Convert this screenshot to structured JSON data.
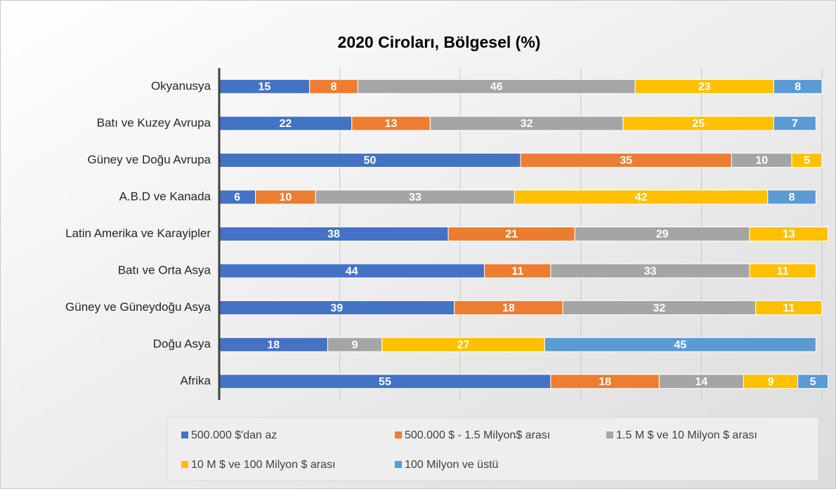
{
  "chart_data": {
    "type": "stacked-bar-horizontal",
    "title": "2020 Ciroları, Bölgesel (%)",
    "categories": [
      "Okyanusya",
      "Batı ve Kuzey Avrupa",
      "Güney ve Doğu Avrupa",
      "A.B.D ve Kanada",
      "Latin Amerika ve Karayipler",
      "Batı ve Orta Asya",
      "Güney ve Güneydoğu Asya",
      "Doğu Asya",
      "Afrika"
    ],
    "series": [
      {
        "name": "500.000 $'dan az",
        "color": "#4472c4",
        "values": [
          15,
          22,
          50,
          6,
          38,
          44,
          39,
          18,
          55
        ]
      },
      {
        "name": "500.000 $ - 1.5 Milyon$ arası",
        "color": "#ed7d31",
        "values": [
          8,
          13,
          35,
          10,
          21,
          11,
          18,
          null,
          18
        ]
      },
      {
        "name": "1.5 M $ ve 10 Milyon $ arası",
        "color": "#a5a5a5",
        "values": [
          46,
          32,
          10,
          33,
          29,
          33,
          32,
          9,
          14
        ]
      },
      {
        "name": "10 M $ ve 100 Milyon $ arası",
        "color": "#ffc000",
        "values": [
          23,
          25,
          5,
          42,
          13,
          11,
          11,
          27,
          9
        ]
      },
      {
        "name": "100 Milyon ve üstü",
        "color": "#5b9bd5",
        "values": [
          8,
          7,
          null,
          8,
          null,
          null,
          null,
          45,
          5
        ]
      }
    ],
    "xlim": [
      0,
      100
    ],
    "xticks": [
      0,
      20,
      40,
      60,
      80,
      100
    ],
    "grid": true,
    "legend": "bottom"
  }
}
